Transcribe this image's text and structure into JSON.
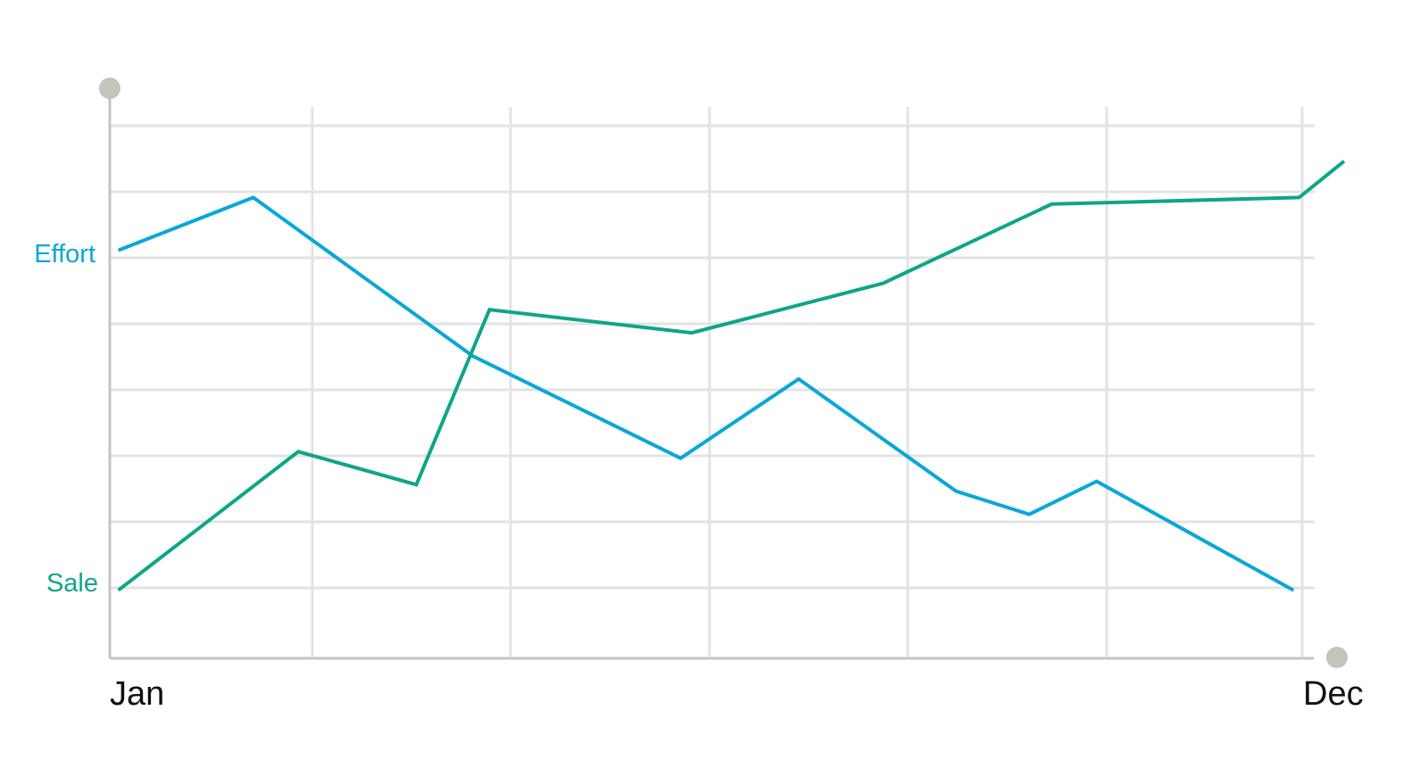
{
  "chart_data": {
    "type": "line",
    "title": "",
    "xlabel": "",
    "ylabel": "",
    "x_tick_labels": [
      "Jan",
      "Dec"
    ],
    "grid": true,
    "series": [
      {
        "name": "Effort",
        "color": "#0aa7d8",
        "points": [
          {
            "x": 0.1,
            "y": 5.1
          },
          {
            "x": 1.3,
            "y": 5.9
          },
          {
            "x": 3.25,
            "y": 3.5
          },
          {
            "x": 5.1,
            "y": 1.95
          },
          {
            "x": 6.15,
            "y": 3.15
          },
          {
            "x": 7.55,
            "y": 1.45
          },
          {
            "x": 8.2,
            "y": 1.1
          },
          {
            "x": 8.8,
            "y": 1.6
          },
          {
            "x": 10.55,
            "y": -0.05
          }
        ]
      },
      {
        "name": "Sale",
        "color": "#0fa589",
        "points": [
          {
            "x": 0.1,
            "y": -0.05
          },
          {
            "x": 1.7,
            "y": 2.05
          },
          {
            "x": 2.75,
            "y": 1.55
          },
          {
            "x": 3.4,
            "y": 4.2
          },
          {
            "x": 5.2,
            "y": 3.85
          },
          {
            "x": 6.9,
            "y": 4.6
          },
          {
            "x": 8.4,
            "y": 5.8
          },
          {
            "x": 10.6,
            "y": 5.9
          },
          {
            "x": 11.0,
            "y": 6.45
          }
        ]
      }
    ]
  }
}
